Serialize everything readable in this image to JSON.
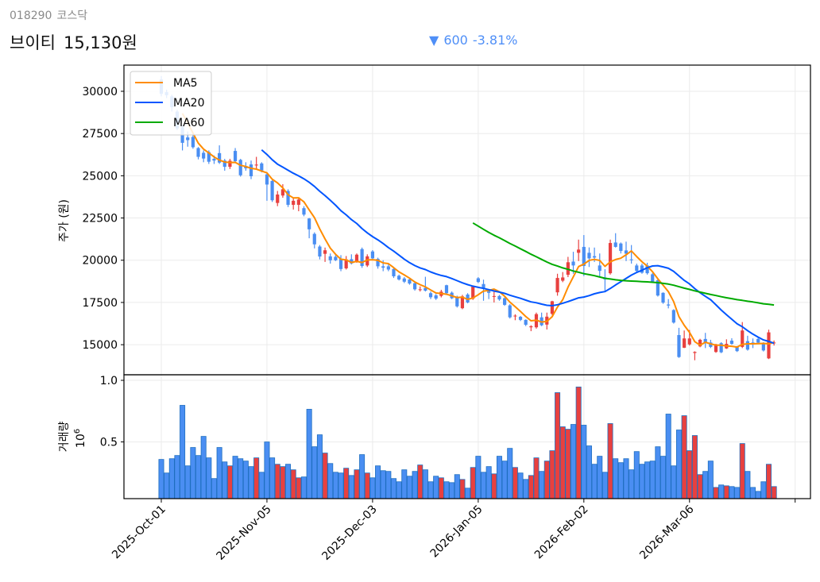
{
  "header": {
    "code": "018290",
    "market": "코스닥",
    "name": "브이티",
    "price": "15,130원",
    "change_arrow": "▼",
    "change": "600",
    "change_pct": "-3.81%"
  },
  "colors": {
    "up": "#e8403f",
    "down": "#4a8ef2",
    "bar_edge": "#1f6fbf",
    "ma5": "#ff8c00",
    "ma20": "#0055ff",
    "ma60": "#00aa00",
    "change": "#4f8ff7"
  },
  "chart_data": [
    {
      "type": "candlestick",
      "ylabel": "주가 (원)",
      "ylim": [
        13220,
        31550
      ],
      "yticks": [
        15000,
        17500,
        20000,
        22500,
        25000,
        27500,
        30000
      ],
      "grid": true,
      "legend": {
        "placement": "top-left",
        "entries": [
          {
            "name": "MA5",
            "window": 5,
            "color": "#ff8c00"
          },
          {
            "name": "MA20",
            "window": 20,
            "color": "#0055ff"
          },
          {
            "name": "MA60",
            "window": 60,
            "color": "#00aa00"
          }
        ]
      },
      "ohlc_fields": [
        "open",
        "high",
        "low",
        "close"
      ],
      "ohlc": [
        [
          30700,
          30900,
          29700,
          29850
        ],
        [
          29950,
          30100,
          29600,
          29770
        ],
        [
          29700,
          29800,
          28800,
          29060
        ],
        [
          28800,
          28900,
          27700,
          27800
        ],
        [
          27900,
          28000,
          26500,
          26950
        ],
        [
          27270,
          27620,
          26720,
          27110
        ],
        [
          27300,
          27500,
          26600,
          26690
        ],
        [
          26640,
          26700,
          25970,
          26120
        ],
        [
          26360,
          26500,
          25800,
          26020
        ],
        [
          26400,
          26500,
          25700,
          25830
        ],
        [
          26000,
          26200,
          25700,
          25900
        ],
        [
          26340,
          26800,
          25700,
          25780
        ],
        [
          25900,
          26000,
          25300,
          25530
        ],
        [
          25530,
          26000,
          25400,
          25890
        ],
        [
          26470,
          26640,
          25800,
          25860
        ],
        [
          25940,
          26000,
          24950,
          25030
        ],
        [
          25550,
          25800,
          25300,
          25440
        ],
        [
          25670,
          25900,
          24800,
          24970
        ],
        [
          25610,
          26120,
          25440,
          25660
        ],
        [
          25730,
          25800,
          25200,
          25310
        ],
        [
          25080,
          25150,
          23520,
          24480
        ],
        [
          24690,
          24750,
          23450,
          23550
        ],
        [
          23390,
          24100,
          23200,
          23890
        ],
        [
          23830,
          24500,
          23700,
          24200
        ],
        [
          24100,
          24200,
          23150,
          23280
        ],
        [
          23280,
          23700,
          23000,
          23520
        ],
        [
          23280,
          23700,
          22900,
          23590
        ],
        [
          23080,
          23200,
          22600,
          22700
        ],
        [
          22470,
          22500,
          21300,
          21830
        ],
        [
          21560,
          21650,
          20700,
          20940
        ],
        [
          20810,
          20900,
          20050,
          20220
        ],
        [
          20380,
          20750,
          19900,
          20590
        ],
        [
          20230,
          20400,
          19800,
          20000
        ],
        [
          20200,
          20350,
          19950,
          20000
        ],
        [
          20080,
          20300,
          19350,
          19480
        ],
        [
          19520,
          20250,
          19450,
          20050
        ],
        [
          20060,
          20350,
          19750,
          19810
        ],
        [
          19950,
          20400,
          19850,
          20330
        ],
        [
          20660,
          20750,
          19550,
          19660
        ],
        [
          19690,
          20350,
          19600,
          20230
        ],
        [
          20520,
          20600,
          20000,
          20110
        ],
        [
          20080,
          20150,
          19500,
          19640
        ],
        [
          19640,
          20000,
          19350,
          19560
        ],
        [
          19640,
          19800,
          19350,
          19450
        ],
        [
          19480,
          19550,
          18950,
          19050
        ],
        [
          19080,
          19150,
          18800,
          18860
        ],
        [
          18920,
          19000,
          18650,
          18730
        ],
        [
          18860,
          18950,
          18550,
          18620
        ],
        [
          18640,
          18700,
          18200,
          18280
        ],
        [
          18240,
          18450,
          18150,
          18280
        ],
        [
          18360,
          19020,
          18150,
          18200
        ],
        [
          18050,
          18150,
          17700,
          17810
        ],
        [
          17920,
          18000,
          17650,
          17730
        ],
        [
          17890,
          18250,
          17800,
          18140
        ],
        [
          18520,
          18550,
          18000,
          18050
        ],
        [
          18080,
          18150,
          17700,
          17750
        ],
        [
          17840,
          17900,
          17200,
          17270
        ],
        [
          17160,
          17950,
          17100,
          17860
        ],
        [
          17970,
          18050,
          17450,
          17500
        ],
        [
          17720,
          18500,
          17650,
          18440
        ],
        [
          18930,
          19000,
          18650,
          18710
        ],
        [
          18590,
          18850,
          17600,
          18350
        ],
        [
          18190,
          18300,
          17700,
          18070
        ],
        [
          17830,
          18200,
          17500,
          17880
        ],
        [
          17880,
          17950,
          17600,
          17680
        ],
        [
          17750,
          17800,
          17300,
          17360
        ],
        [
          17330,
          17400,
          16550,
          16620
        ],
        [
          16690,
          16800,
          16450,
          16720
        ],
        [
          16650,
          16700,
          16400,
          16470
        ],
        [
          16470,
          16500,
          16100,
          16180
        ],
        [
          16030,
          16150,
          15800,
          16090
        ],
        [
          16030,
          16900,
          15950,
          16810
        ],
        [
          16620,
          16900,
          16100,
          16150
        ],
        [
          16190,
          16900,
          15900,
          16660
        ],
        [
          16830,
          17600,
          16750,
          17570
        ],
        [
          18100,
          19200,
          17900,
          18950
        ],
        [
          18790,
          19300,
          18700,
          18980
        ],
        [
          19140,
          20200,
          19000,
          19880
        ],
        [
          19920,
          20500,
          19200,
          19690
        ],
        [
          20440,
          21220,
          19950,
          20630
        ],
        [
          20790,
          21490,
          19060,
          19660
        ],
        [
          20440,
          20760,
          19600,
          20110
        ],
        [
          20240,
          20750,
          19900,
          20160
        ],
        [
          19690,
          20400,
          19050,
          19370
        ],
        [
          18980,
          19470,
          18200,
          18870
        ],
        [
          19230,
          21220,
          19150,
          21020
        ],
        [
          21050,
          21600,
          20750,
          20790
        ],
        [
          20990,
          21050,
          20400,
          20550
        ],
        [
          20580,
          21100,
          19950,
          20390
        ],
        [
          20050,
          20900,
          19800,
          20000
        ],
        [
          19690,
          19800,
          19300,
          19370
        ],
        [
          19690,
          19800,
          19200,
          19260
        ],
        [
          19690,
          19850,
          19150,
          19230
        ],
        [
          19170,
          19250,
          18700,
          18740
        ],
        [
          18820,
          18900,
          17850,
          17910
        ],
        [
          18070,
          18100,
          17420,
          17490
        ],
        [
          17380,
          17700,
          17150,
          17320
        ],
        [
          17050,
          17100,
          16250,
          16310
        ],
        [
          15570,
          16000,
          14220,
          14270
        ],
        [
          14820,
          15840,
          14800,
          15370
        ],
        [
          15020,
          15870,
          14950,
          15370
        ],
        [
          14510,
          14610,
          14080,
          14570
        ],
        [
          14900,
          15350,
          14850,
          15290
        ],
        [
          15340,
          15700,
          14800,
          15130
        ],
        [
          15130,
          15290,
          14800,
          14870
        ],
        [
          14570,
          15050,
          14520,
          15020
        ],
        [
          15090,
          15150,
          14500,
          14550
        ],
        [
          14780,
          15320,
          14750,
          15050
        ],
        [
          15240,
          15380,
          15000,
          15050
        ],
        [
          14870,
          14920,
          14570,
          14620
        ],
        [
          14870,
          16340,
          14800,
          15840
        ],
        [
          15210,
          15530,
          14650,
          14710
        ],
        [
          15130,
          15370,
          14800,
          15050
        ],
        [
          15340,
          15450,
          15050,
          15120
        ],
        [
          15100,
          15150,
          14600,
          14660
        ],
        [
          14190,
          15890,
          14150,
          15730
        ],
        [
          15080,
          15250,
          14950,
          15130
        ]
      ]
    },
    {
      "type": "bar",
      "ylabel": "거래량",
      "offset_label": "10",
      "offset_exp": "6",
      "ylim": [
        0.04,
        1.045
      ],
      "yticks": [
        0.5,
        1.0
      ],
      "ytick_labels": [
        "0.5",
        "1.0"
      ],
      "grid": true,
      "values": [
        0.358,
        0.248,
        0.364,
        0.39,
        0.797,
        0.306,
        0.455,
        0.39,
        0.545,
        0.371,
        0.203,
        0.455,
        0.338,
        0.306,
        0.384,
        0.364,
        0.345,
        0.3,
        0.371,
        0.254,
        0.5,
        0.371,
        0.319,
        0.3,
        0.319,
        0.274,
        0.209,
        0.216,
        0.765,
        0.461,
        0.558,
        0.41,
        0.325,
        0.254,
        0.248,
        0.287,
        0.228,
        0.274,
        0.397,
        0.248,
        0.209,
        0.306,
        0.267,
        0.261,
        0.203,
        0.177,
        0.274,
        0.222,
        0.261,
        0.313,
        0.274,
        0.177,
        0.222,
        0.209,
        0.177,
        0.17,
        0.235,
        0.196,
        0.125,
        0.293,
        0.384,
        0.254,
        0.3,
        0.241,
        0.384,
        0.345,
        0.448,
        0.293,
        0.248,
        0.196,
        0.228,
        0.371,
        0.261,
        0.345,
        0.429,
        0.9,
        0.623,
        0.603,
        0.642,
        0.946,
        0.636,
        0.468,
        0.319,
        0.384,
        0.254,
        0.649,
        0.364,
        0.332,
        0.364,
        0.274,
        0.422,
        0.319,
        0.338,
        0.345,
        0.461,
        0.384,
        0.726,
        0.306,
        0.597,
        0.713,
        0.429,
        0.552,
        0.235,
        0.261,
        0.345,
        0.131,
        0.151,
        0.144,
        0.138,
        0.131,
        0.487,
        0.261,
        0.131,
        0.099,
        0.177,
        0.319,
        0.138
      ]
    }
  ],
  "xaxis": {
    "ticks": [
      {
        "index": 0,
        "label": "2025-Oct-01"
      },
      {
        "index": 20,
        "label": "2025-Nov-05"
      },
      {
        "index": 40,
        "label": "2025-Dec-03"
      },
      {
        "index": 60,
        "label": "2026-Jan-05"
      },
      {
        "index": 80,
        "label": "2026-Feb-02"
      },
      {
        "index": 100,
        "label": "2026-Mar-06"
      },
      {
        "index": 120,
        "label": ""
      }
    ]
  }
}
